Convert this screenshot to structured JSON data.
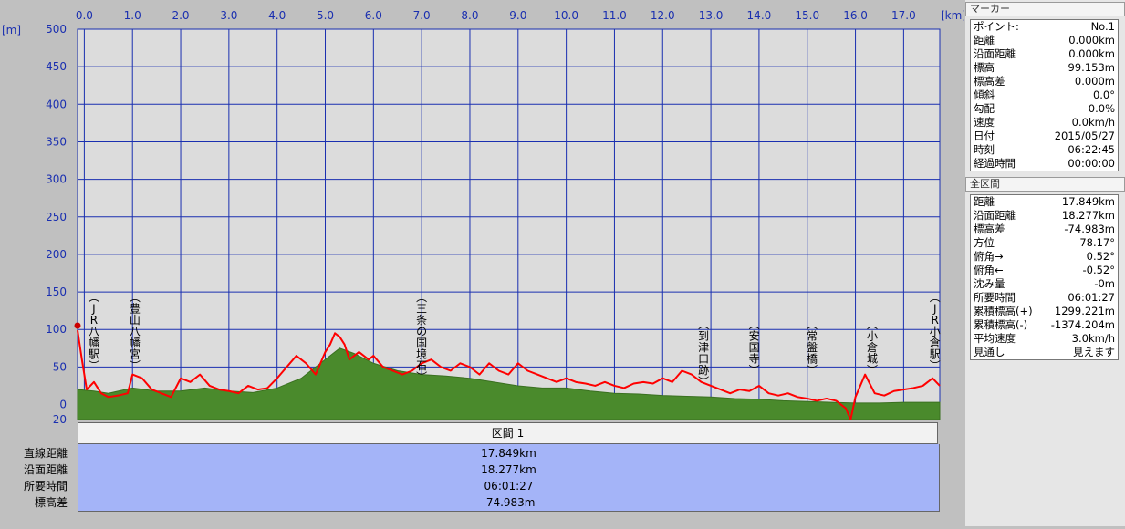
{
  "chart_data": {
    "type": "area",
    "x_unit": "[km]",
    "y_unit": "[m]",
    "xlim": [
      -0.14,
      17.75
    ],
    "ylim": [
      -20,
      500
    ],
    "x_ticks": [
      "0.0",
      "1.0",
      "2.0",
      "3.0",
      "4.0",
      "5.0",
      "6.0",
      "7.0",
      "8.0",
      "9.0",
      "10.0",
      "11.0",
      "12.0",
      "13.0",
      "14.0",
      "15.0",
      "16.0",
      "17.0"
    ],
    "x_tick_values": [
      0,
      1,
      2,
      3,
      4,
      5,
      6,
      7,
      8,
      9,
      10,
      11,
      12,
      13,
      14,
      15,
      16,
      17
    ],
    "y_ticks": [
      "500",
      "450",
      "400",
      "350",
      "300",
      "250",
      "200",
      "150",
      "100",
      "50",
      "0",
      "-20"
    ],
    "y_tick_values": [
      500,
      450,
      400,
      350,
      300,
      250,
      200,
      150,
      100,
      50,
      0,
      -20
    ],
    "grid": true,
    "series": [
      {
        "color": "#4a8a2c",
        "x": [
          -0.14,
          0.2,
          0.5,
          1.0,
          1.5,
          2.0,
          2.5,
          3.0,
          3.5,
          4.0,
          4.5,
          5.0,
          5.3,
          5.6,
          6.0,
          6.5,
          7.0,
          7.5,
          8.0,
          8.5,
          9.0,
          9.5,
          10.0,
          10.5,
          11.0,
          11.5,
          12.0,
          12.5,
          13.0,
          13.5,
          14.0,
          14.5,
          15.0,
          15.5,
          16.0,
          16.5,
          17.0,
          17.75
        ],
        "y": [
          20,
          18,
          15,
          22,
          18,
          18,
          22,
          18,
          16,
          22,
          35,
          60,
          75,
          68,
          55,
          45,
          40,
          38,
          35,
          30,
          25,
          22,
          22,
          18,
          15,
          14,
          12,
          11,
          10,
          8,
          7,
          5,
          4,
          3,
          2,
          2,
          3,
          3
        ]
      },
      {
        "color": "#ff0000",
        "x": [
          -0.14,
          -0.05,
          0.05,
          0.2,
          0.35,
          0.5,
          0.7,
          0.9,
          1.0,
          1.2,
          1.4,
          1.6,
          1.8,
          2.0,
          2.2,
          2.4,
          2.6,
          2.8,
          3.0,
          3.2,
          3.4,
          3.6,
          3.8,
          4.0,
          4.2,
          4.4,
          4.6,
          4.8,
          5.0,
          5.1,
          5.2,
          5.3,
          5.4,
          5.5,
          5.7,
          5.9,
          6.0,
          6.2,
          6.4,
          6.6,
          6.8,
          7.0,
          7.2,
          7.4,
          7.6,
          7.8,
          8.0,
          8.2,
          8.4,
          8.6,
          8.8,
          9.0,
          9.2,
          9.4,
          9.6,
          9.8,
          10.0,
          10.2,
          10.4,
          10.6,
          10.8,
          11.0,
          11.2,
          11.4,
          11.6,
          11.8,
          12.0,
          12.2,
          12.4,
          12.6,
          12.8,
          13.0,
          13.2,
          13.4,
          13.6,
          13.8,
          14.0,
          14.2,
          14.4,
          14.6,
          14.8,
          15.0,
          15.2,
          15.4,
          15.6,
          15.8,
          15.9,
          16.0,
          16.2,
          16.4,
          16.6,
          16.8,
          17.0,
          17.2,
          17.4,
          17.6,
          17.75
        ],
        "y": [
          99,
          60,
          20,
          30,
          15,
          10,
          12,
          15,
          40,
          35,
          20,
          15,
          10,
          35,
          30,
          40,
          25,
          20,
          18,
          15,
          25,
          20,
          22,
          35,
          50,
          65,
          55,
          40,
          70,
          80,
          95,
          90,
          80,
          60,
          70,
          60,
          65,
          50,
          45,
          40,
          45,
          55,
          60,
          50,
          45,
          55,
          50,
          40,
          55,
          45,
          40,
          55,
          45,
          40,
          35,
          30,
          35,
          30,
          28,
          25,
          30,
          25,
          22,
          28,
          30,
          28,
          35,
          30,
          45,
          40,
          30,
          25,
          20,
          15,
          20,
          18,
          25,
          15,
          12,
          15,
          10,
          8,
          5,
          8,
          5,
          -5,
          -20,
          10,
          40,
          15,
          12,
          18,
          20,
          22,
          25,
          35,
          25
        ]
      }
    ],
    "annotations": [
      {
        "x": 0.2,
        "text": "(JR八幡駅)"
      },
      {
        "x": 1.05,
        "text": "(豊山八幡宮)"
      },
      {
        "x": 7.0,
        "text": "(三条の国境石)"
      },
      {
        "x": 12.85,
        "text": "(到津口跡)"
      },
      {
        "x": 13.9,
        "text": "(安国寺)"
      },
      {
        "x": 15.1,
        "text": "(常盤橋)"
      },
      {
        "x": 16.35,
        "text": "(小倉城)"
      },
      {
        "x": 17.65,
        "text": "(JR小倉駅)"
      }
    ]
  },
  "section": {
    "title": "区間 1",
    "rows": [
      {
        "label": "直線距離",
        "value": "17.849km"
      },
      {
        "label": "沿面距離",
        "value": "18.277km"
      },
      {
        "label": "所要時間",
        "value": "06:01:27"
      },
      {
        "label": "標高差",
        "value": "-74.983m"
      }
    ]
  },
  "marker_panel": {
    "title": "マーカー",
    "rows": [
      {
        "label": "ポイント:",
        "value": "No.1"
      },
      {
        "label": "距離",
        "value": "0.000km"
      },
      {
        "label": "沿面距離",
        "value": "0.000km"
      },
      {
        "label": "標高",
        "value": "99.153m"
      },
      {
        "label": "標高差",
        "value": "0.000m"
      },
      {
        "label": "傾斜",
        "value": "0.0°"
      },
      {
        "label": "勾配",
        "value": "0.0%"
      },
      {
        "label": "速度",
        "value": "0.0km/h"
      },
      {
        "label": "日付",
        "value": "2015/05/27"
      },
      {
        "label": "時刻",
        "value": "06:22:45"
      },
      {
        "label": "経過時間",
        "value": "00:00:00"
      }
    ]
  },
  "whole_panel": {
    "title": "全区間",
    "rows": [
      {
        "label": "距離",
        "value": "17.849km"
      },
      {
        "label": "沿面距離",
        "value": "18.277km"
      },
      {
        "label": "標高差",
        "value": "-74.983m"
      },
      {
        "label": "方位",
        "value": "78.17°"
      },
      {
        "label": "俯角→",
        "value": "0.52°"
      },
      {
        "label": "俯角←",
        "value": "-0.52°"
      },
      {
        "label": "沈み量",
        "value": "-0m"
      },
      {
        "label": "所要時間",
        "value": "06:01:27"
      },
      {
        "label": "累積標高(+)",
        "value": "1299.221m"
      },
      {
        "label": "累積標高(-)",
        "value": "-1374.204m"
      },
      {
        "label": "平均速度",
        "value": "3.0km/h"
      },
      {
        "label": "見通し",
        "value": "見えます"
      }
    ]
  }
}
